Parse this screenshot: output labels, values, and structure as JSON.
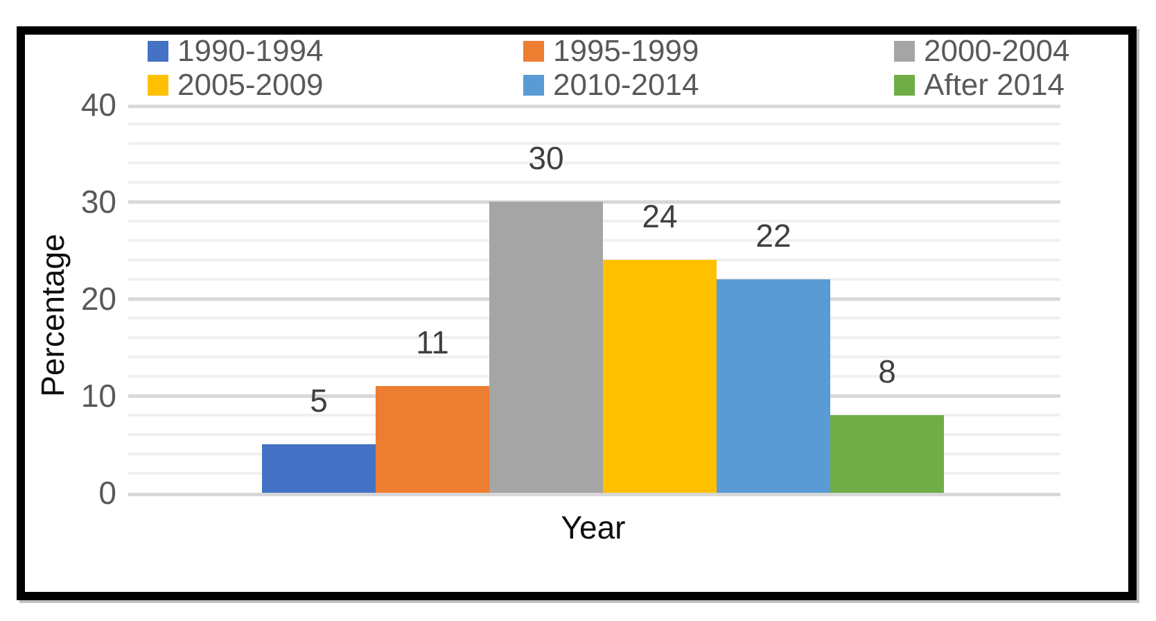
{
  "chart_data": {
    "type": "bar",
    "title": "",
    "xlabel": "Year",
    "ylabel": "Percentage",
    "ylim": [
      0,
      40
    ],
    "y_major_ticks": [
      0,
      10,
      20,
      30,
      40
    ],
    "y_minor_unit": 2,
    "grid": true,
    "legend_position": "top",
    "legend_marker": "square",
    "categories": [
      "1990-1994",
      "1995-1999",
      "2000-2004",
      "2005-2009",
      "2010-2014",
      "After 2014"
    ],
    "values": [
      5,
      11,
      30,
      24,
      22,
      8
    ],
    "series": [
      {
        "name": "1990-1994",
        "value": 5,
        "color": "#4472C4"
      },
      {
        "name": "1995-1999",
        "value": 11,
        "color": "#ED7D31"
      },
      {
        "name": "2000-2004",
        "value": 30,
        "color": "#A5A5A5"
      },
      {
        "name": "2005-2009",
        "value": 24,
        "color": "#FFC000"
      },
      {
        "name": "2010-2014",
        "value": 22,
        "color": "#5B9BD5"
      },
      {
        "name": "After 2014",
        "value": 8,
        "color": "#70AD47"
      }
    ],
    "data_label_color": "#404040",
    "tick_label_color": "#595959",
    "axis_title_color": "#0d0d0d",
    "gridline_major_color": "#d8d8d8",
    "gridline_minor_color": "#f0f0f0",
    "frame_border_color": "#000000"
  }
}
